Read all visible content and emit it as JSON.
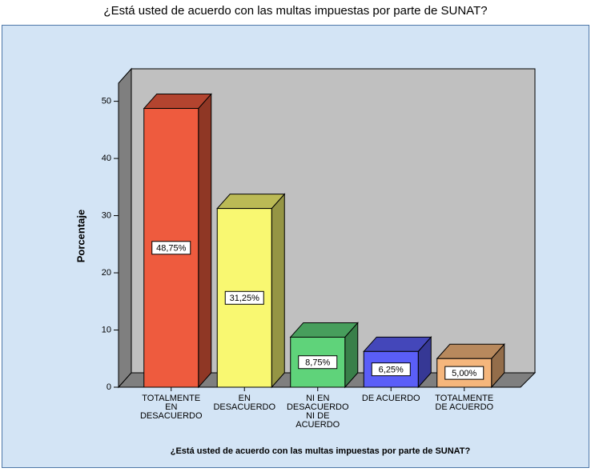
{
  "chart_data": {
    "type": "bar3d",
    "title": "¿Está usted de acuerdo con las multas impuestas por parte de SUNAT?",
    "x_label": "¿Está usted de acuerdo con las multas impuestas por parte de SUNAT?",
    "y_label": "Porcentaje",
    "categories": [
      [
        "TOTALMENTE",
        "EN",
        "DESACUERDO"
      ],
      [
        "EN",
        "DESACUERDO"
      ],
      [
        "NI EN",
        "DESACUERDO",
        "NI DE",
        "ACUERDO"
      ],
      [
        "DE ACUERDO"
      ],
      [
        "TOTALMENTE",
        "DE ACUERDO"
      ]
    ],
    "values": [
      48.75,
      31.25,
      8.75,
      6.25,
      5.0
    ],
    "value_labels": [
      "48,75%",
      "31,25%",
      "8,75%",
      "6,25%",
      "5,00%"
    ],
    "colors": [
      "#ee5b3e",
      "#f9f871",
      "#5fd37a",
      "#5a5ef8",
      "#f5b67c"
    ],
    "ylim": [
      0,
      54
    ],
    "yticks": [
      0,
      10,
      20,
      30,
      40,
      50
    ]
  }
}
